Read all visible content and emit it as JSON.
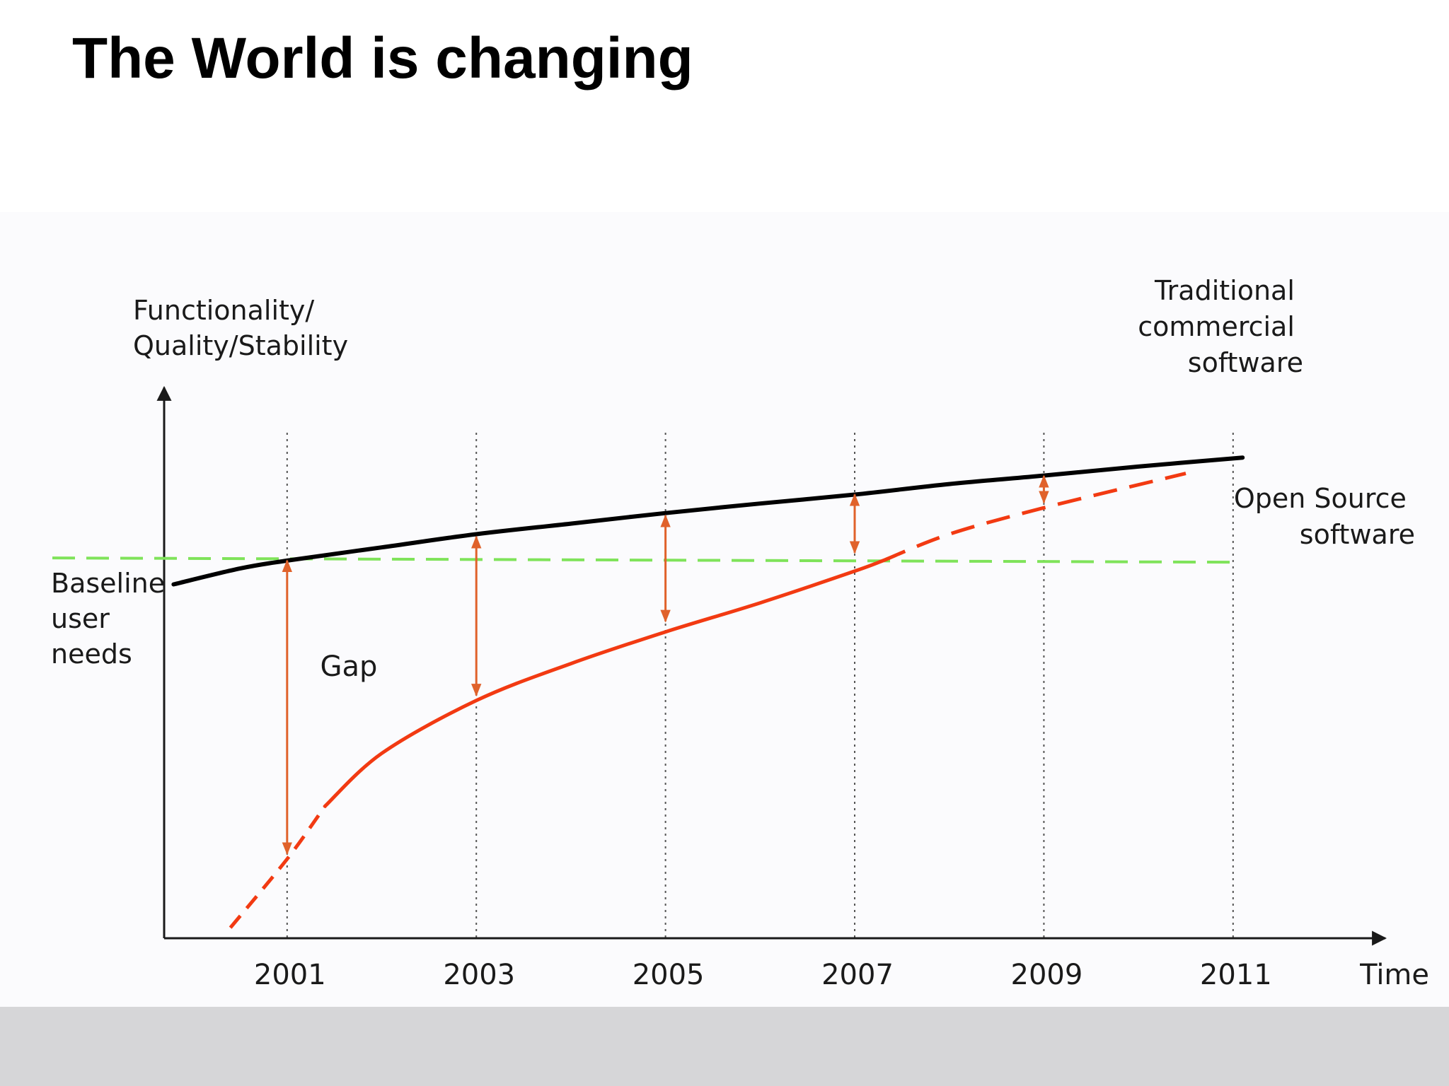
{
  "slide": {
    "title": "The World is changing"
  },
  "colors": {
    "traditional": "#000000",
    "open_source": "#f23a12",
    "gap_arrow": "#e0622b",
    "baseline": "#7fe35a",
    "gridline": "#555555",
    "footer": "#d6d6d8"
  },
  "chart_data": {
    "type": "line",
    "title": "",
    "xlabel": "Time",
    "ylabel_lines": [
      "Functionality/",
      "Quality/Stability"
    ],
    "x_ticks": [
      "2001",
      "2003",
      "2005",
      "2007",
      "2009",
      "2011"
    ],
    "x_tick_values": [
      2001,
      2003,
      2005,
      2007,
      2009,
      2011
    ],
    "xlim": [
      1999.7,
      2012.4
    ],
    "ylim": [
      0,
      100
    ],
    "grid": "vertical dotted lines at each tick year",
    "baseline": {
      "name_lines": [
        "Baseline",
        "user",
        "needs"
      ],
      "value": 72
    },
    "series": [
      {
        "name_lines": [
          "Traditional",
          "commercial",
          "software"
        ],
        "style": "solid",
        "x": [
          1999.8,
          2000.5,
          2001,
          2002,
          2003,
          2004,
          2005,
          2006,
          2007,
          2008,
          2009,
          2010,
          2011.1
        ],
        "y": [
          67,
          70,
          71.5,
          74,
          76.5,
          78.5,
          80.5,
          82.3,
          84,
          86,
          87.6,
          89.3,
          91
        ]
      },
      {
        "name_lines": [
          "Open Source",
          "software"
        ],
        "style": "solid-with-dashed-extensions",
        "dashed_start": {
          "x": [
            2000.4,
            2001,
            2001.4
          ],
          "y": [
            2,
            15,
            25
          ]
        },
        "x": [
          2001.4,
          2002,
          2003,
          2004,
          2005,
          2006,
          2007,
          2007.3
        ],
        "y": [
          25,
          35,
          45,
          52,
          58,
          63.5,
          69.5,
          71.5
        ],
        "dashed_end": {
          "x": [
            2007.3,
            2008,
            2009,
            2010.5
          ],
          "y": [
            71.5,
            76.5,
            81.5,
            88
          ]
        }
      }
    ],
    "annotations": [
      {
        "text": "Gap",
        "x": 2001.2,
        "y": 55
      }
    ],
    "gap_arrows": [
      {
        "x": 2001,
        "from": 71.5,
        "to": 16
      },
      {
        "x": 2003,
        "from": 76,
        "to": 46
      },
      {
        "x": 2005,
        "from": 80,
        "to": 60
      },
      {
        "x": 2007,
        "from": 84,
        "to": 73
      },
      {
        "x": 2009,
        "from": 87.5,
        "to": 82.5
      }
    ]
  }
}
